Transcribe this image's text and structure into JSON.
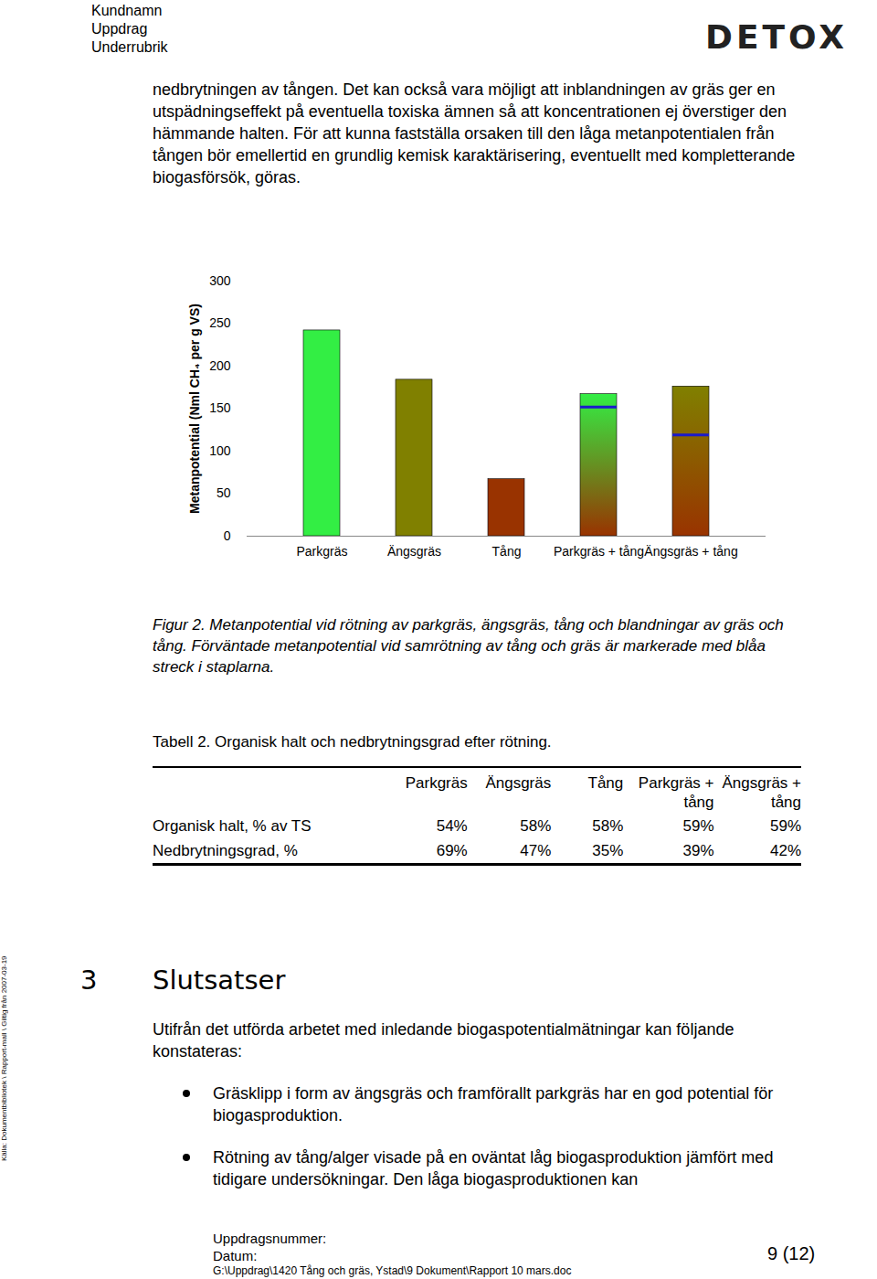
{
  "header": {
    "lines": [
      "Kundnamn",
      "Uppdrag",
      "Underrubrik"
    ],
    "logo": "DETOX"
  },
  "paragraph": "nedbrytningen av tången. Det kan också vara möjligt att inblandningen av gräs ger en utspädningseffekt på eventuella toxiska ämnen så att koncentrationen ej överstiger den hämmande halten. För att kunna fastställa orsaken till den låga metanpotentialen från tången bör emellertid en grundlig kemisk karaktärisering, eventuellt med kompletterande biogasförsök, göras.",
  "chart_data": {
    "type": "bar",
    "y_label": "Metanpotential (Nml CH₄ per g VS)",
    "categories": [
      "Parkgräs",
      "Ängsgräs",
      "Tång",
      "Parkgräs + tång",
      "Ängsgräs + tång"
    ],
    "values": [
      242,
      184,
      67,
      167,
      176
    ],
    "expected_values": [
      null,
      null,
      null,
      152,
      119
    ],
    "colors": [
      "#33ee44",
      "#808000",
      "#993300",
      [
        "#33ee44",
        "#993300"
      ],
      [
        "#808000",
        "#993300"
      ]
    ],
    "ylim": [
      0,
      300
    ],
    "yticks": [
      0,
      50,
      100,
      150,
      200,
      250,
      300
    ]
  },
  "figure_caption": "Figur 2. Metanpotential vid rötning av parkgräs, ängsgräs, tång och blandningar av gräs och tång. Förväntade metanpotential vid samrötning av tång och gräs är markerade med blåa streck i staplarna.",
  "table": {
    "title": "Tabell 2. Organisk halt och nedbrytningsgrad efter rötning.",
    "header": [
      "Parkgräs",
      "Ängsgräs",
      "Tång",
      "Parkgräs + tång",
      "Ängsgräs + tång"
    ],
    "rows": [
      {
        "label": "Organisk halt, % av TS",
        "cells": [
          "54%",
          "58%",
          "58%",
          "59%",
          "59%"
        ]
      },
      {
        "label": "Nedbrytningsgrad, %",
        "cells": [
          "69%",
          "47%",
          "35%",
          "39%",
          "42%"
        ]
      }
    ]
  },
  "section": {
    "number": "3",
    "title": "Slutsatser"
  },
  "intro": "Utifrån det utförda arbetet med inledande biogaspotentialmätningar kan följande konstateras:",
  "bullets": [
    "Gräsklipp i form av ängsgräs och framförallt parkgräs har en god potential för biogasproduktion.",
    "Rötning av tång/alger visade på en oväntat låg biogasproduktion jämfört med tidigare undersökningar. Den låga biogasproduktionen kan"
  ],
  "side_note": "Källa: Dokumentbibliotek \\ Rapport-mall \\ Giltig från 2007-03-19",
  "footer": {
    "lines": [
      "Uppdragsnummer:",
      "Datum:"
    ],
    "path": "G:\\Uppdrag\\1420 Tång och gräs, Ystad\\9 Dokument\\Rapport 10 mars.doc",
    "page": "9 (12)"
  }
}
